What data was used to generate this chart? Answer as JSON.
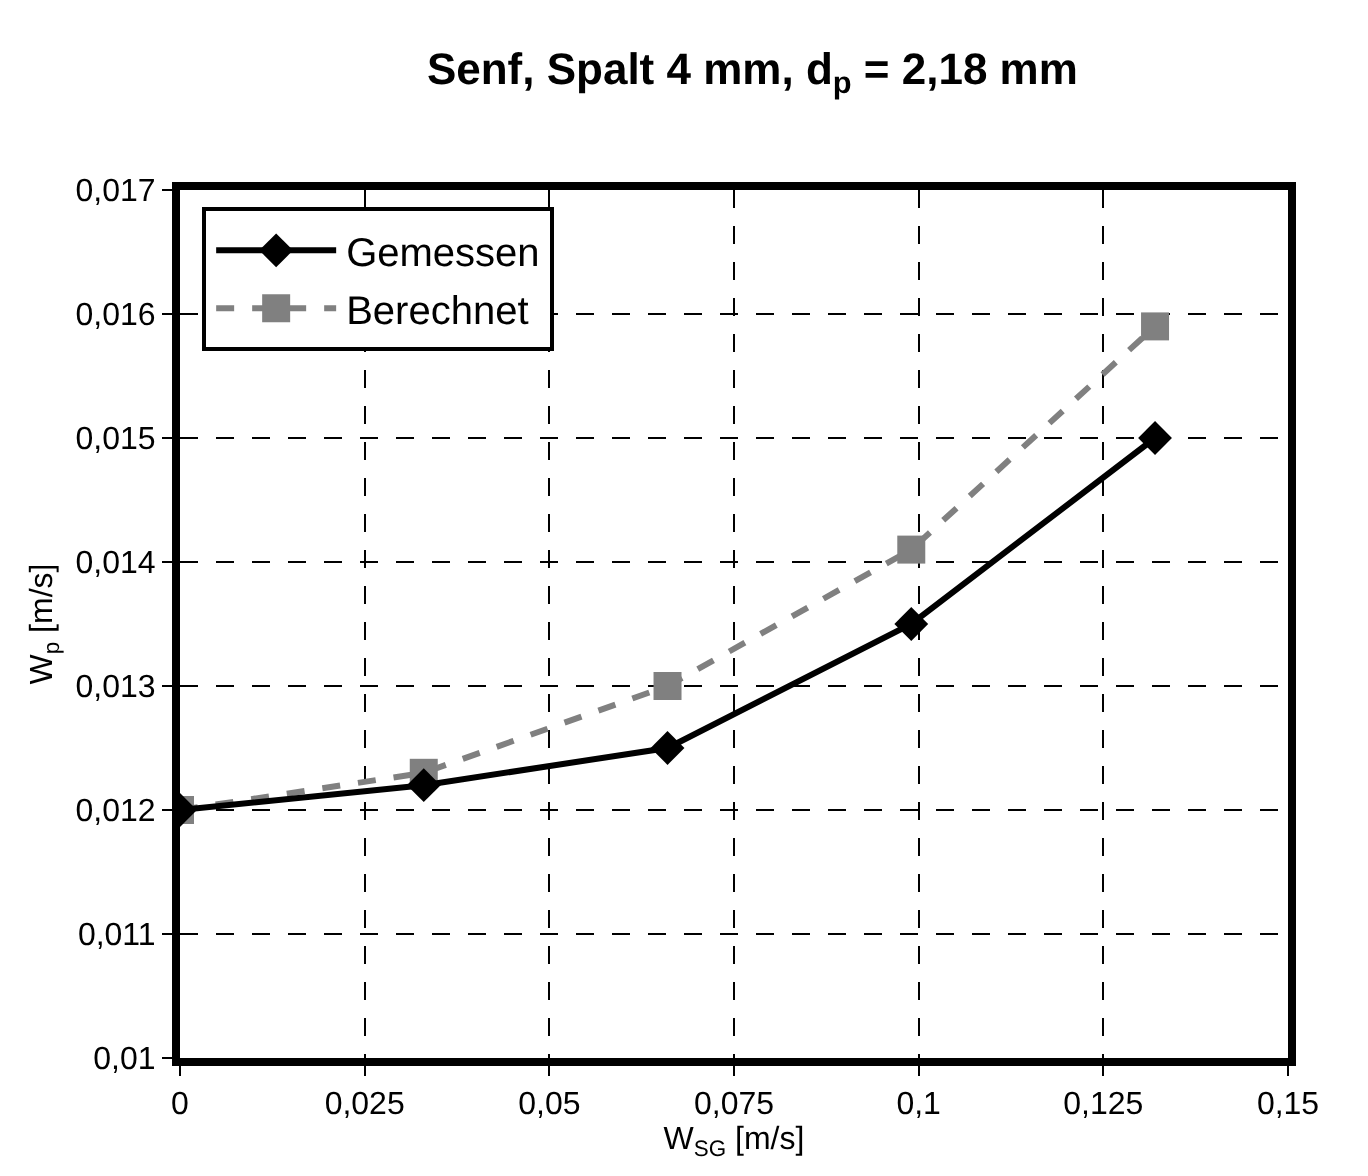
{
  "chart_data": {
    "type": "line",
    "title": "Senf, Spalt 4 mm, d$_{p}$ = 2,18 mm",
    "xlabel": "W$_{SG}$ [m/s]",
    "ylabel": "W$_{p}$ [m/s]",
    "x": [
      0,
      0.033,
      0.066,
      0.099,
      0.132
    ],
    "series": [
      {
        "name": "Gemessen",
        "color": "#000000",
        "marker": "diamond",
        "line_style": "solid",
        "values": [
          0.012,
          0.0122,
          0.0125,
          0.0135,
          0.015
        ]
      },
      {
        "name": "Berechnet",
        "color": "#808080",
        "marker": "square",
        "line_style": "dashed",
        "values": [
          0.012,
          0.0123,
          0.013,
          0.0141,
          0.0159
        ]
      }
    ],
    "xlim": [
      0,
      0.15
    ],
    "xticks": [
      0,
      {
        "value": 0.025,
        "label": "0,025"
      },
      {
        "value": 0.05,
        "label": "0,05"
      },
      {
        "value": 0.075,
        "label": "0,075"
      },
      {
        "value": 0.1,
        "label": "0,1"
      },
      {
        "value": 0.125,
        "label": "0,125"
      },
      {
        "value": 0.15,
        "label": "0,15"
      }
    ],
    "ylim": [
      0.01,
      0.017
    ],
    "yticks": [
      {
        "value": 0.01,
        "label": "0,01"
      },
      {
        "value": 0.011,
        "label": "0,011"
      },
      {
        "value": 0.012,
        "label": "0,012"
      },
      {
        "value": 0.013,
        "label": "0,013"
      },
      {
        "value": 0.014,
        "label": "0,014"
      },
      {
        "value": 0.015,
        "label": "0,015"
      },
      {
        "value": 0.016,
        "label": "0,016"
      },
      {
        "value": 0.017,
        "label": "0,017"
      }
    ],
    "grid": true,
    "legend": "top left"
  }
}
